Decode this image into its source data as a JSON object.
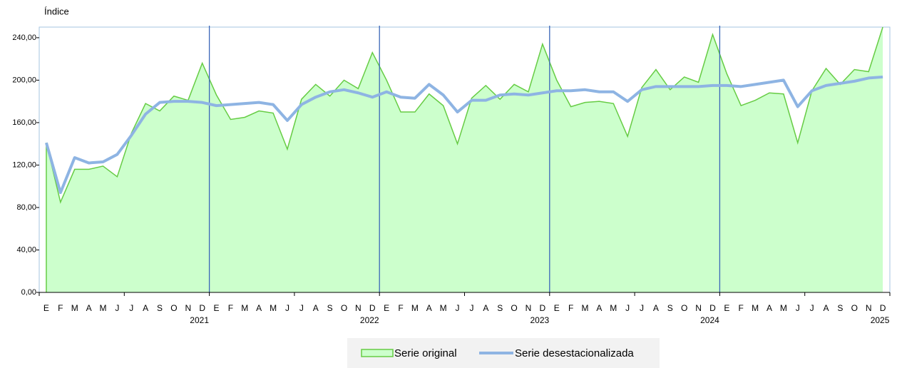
{
  "chart_data": {
    "type": "area-line",
    "y_axis_title": "Índice",
    "categories": [
      "E",
      "F",
      "M",
      "A",
      "M",
      "J",
      "J",
      "A",
      "S",
      "O",
      "N",
      "D",
      "E",
      "F",
      "M",
      "A",
      "M",
      "J",
      "J",
      "A",
      "S",
      "O",
      "N",
      "D",
      "E",
      "F",
      "M",
      "A",
      "M",
      "J",
      "J",
      "A",
      "S",
      "O",
      "N",
      "D",
      "E",
      "F",
      "M",
      "A",
      "M",
      "J",
      "J",
      "A",
      "S",
      "O",
      "N",
      "D",
      "E",
      "F",
      "M",
      "A",
      "M",
      "J",
      "J",
      "A",
      "S",
      "O",
      "N",
      "D"
    ],
    "year_labels": [
      null,
      null,
      null,
      null,
      null,
      null,
      null,
      null,
      null,
      null,
      null,
      "2021",
      null,
      null,
      null,
      null,
      null,
      null,
      null,
      null,
      null,
      null,
      null,
      "2022",
      null,
      null,
      null,
      null,
      null,
      null,
      null,
      null,
      null,
      null,
      null,
      "2023",
      null,
      null,
      null,
      null,
      null,
      null,
      null,
      null,
      null,
      null,
      null,
      "2024",
      null,
      null,
      null,
      null,
      null,
      null,
      null,
      null,
      null,
      null,
      null,
      "2025"
    ],
    "series": [
      {
        "name": "Serie original",
        "color": "#66cc44",
        "fill": "#ccffcc",
        "values": [
          141,
          85,
          116,
          116,
          119,
          109,
          150,
          178,
          171,
          185,
          181,
          216,
          186,
          163,
          165,
          171,
          169,
          135,
          182,
          196,
          185,
          200,
          192,
          226,
          200,
          170,
          170,
          187,
          176,
          140,
          183,
          195,
          182,
          196,
          189,
          234,
          200,
          175,
          179,
          180,
          178,
          147,
          193,
          210,
          191,
          203,
          198,
          243,
          206,
          176,
          181,
          188,
          187,
          141,
          190,
          211,
          196,
          210,
          208,
          250
        ]
      },
      {
        "name": "Serie desestacionalizada",
        "color": "#8eb4e3",
        "values": [
          141,
          94,
          127,
          122,
          123,
          130,
          148,
          168,
          179,
          180,
          180,
          179,
          176,
          177,
          178,
          179,
          177,
          162,
          177,
          184,
          189,
          191,
          188,
          184,
          189,
          184,
          183,
          196,
          186,
          170,
          181,
          181,
          186,
          187,
          186,
          188,
          190,
          190,
          191,
          189,
          189,
          180,
          191,
          194,
          194,
          194,
          194,
          195,
          195,
          194,
          196,
          198,
          200,
          175,
          190,
          195,
          197,
          199,
          202,
          203
        ]
      }
    ],
    "ylim": [
      0,
      250
    ],
    "yticks": [
      {
        "value": 0,
        "label": "0,00"
      },
      {
        "value": 40,
        "label": "40,00"
      },
      {
        "value": 80,
        "label": "80,00"
      },
      {
        "value": 120,
        "label": "120,00"
      },
      {
        "value": 160,
        "label": "160,00"
      },
      {
        "value": 200,
        "label": "200,00"
      },
      {
        "value": 240,
        "label": "240,00"
      }
    ]
  }
}
